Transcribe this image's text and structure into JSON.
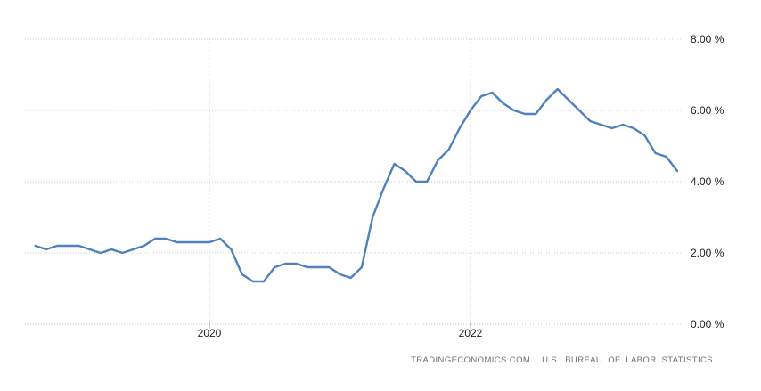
{
  "chart_data": {
    "type": "line",
    "x": [
      "2018-09",
      "2018-10",
      "2018-11",
      "2018-12",
      "2019-01",
      "2019-02",
      "2019-03",
      "2019-04",
      "2019-05",
      "2019-06",
      "2019-07",
      "2019-08",
      "2019-09",
      "2019-10",
      "2019-11",
      "2019-12",
      "2020-01",
      "2020-02",
      "2020-03",
      "2020-04",
      "2020-05",
      "2020-06",
      "2020-07",
      "2020-08",
      "2020-09",
      "2020-10",
      "2020-11",
      "2020-12",
      "2021-01",
      "2021-02",
      "2021-03",
      "2021-04",
      "2021-05",
      "2021-06",
      "2021-07",
      "2021-08",
      "2021-09",
      "2021-10",
      "2021-11",
      "2021-12",
      "2022-01",
      "2022-02",
      "2022-03",
      "2022-04",
      "2022-05",
      "2022-06",
      "2022-07",
      "2022-08",
      "2022-09",
      "2022-10",
      "2022-11",
      "2022-12",
      "2023-01",
      "2023-02",
      "2023-03",
      "2023-04",
      "2023-05",
      "2023-06",
      "2023-07",
      "2023-08"
    ],
    "values": [
      2.2,
      2.1,
      2.2,
      2.2,
      2.2,
      2.1,
      2.0,
      2.1,
      2.0,
      2.1,
      2.2,
      2.4,
      2.4,
      2.3,
      2.3,
      2.3,
      2.3,
      2.4,
      2.1,
      1.4,
      1.2,
      1.2,
      1.6,
      1.7,
      1.7,
      1.6,
      1.6,
      1.6,
      1.4,
      1.3,
      1.6,
      3.0,
      3.8,
      4.5,
      4.3,
      4.0,
      4.0,
      4.6,
      4.9,
      5.5,
      6.0,
      6.4,
      6.5,
      6.2,
      6.0,
      5.9,
      5.9,
      6.3,
      6.6,
      6.3,
      6.0,
      5.7,
      5.6,
      5.5,
      5.6,
      5.5,
      5.3,
      4.8,
      4.7,
      4.3
    ],
    "x_tick_labels": [
      "2020",
      "2022"
    ],
    "x_tick_month_indices": [
      16,
      40
    ],
    "y_ticks": [
      8,
      6,
      4,
      2,
      0
    ],
    "y_tick_labels": [
      "8.00 %",
      "6.00 %",
      "4.00 %",
      "2.00 %",
      "0.00 %"
    ],
    "ylim": [
      0,
      8
    ],
    "grid": "dotted",
    "legend": "none",
    "line_color": "#4f81bd",
    "grid_color": "#c9c9c9",
    "tick_color": "#999999"
  },
  "footer": {
    "source": "TRADINGECONOMICS.COM",
    "separator": "|",
    "agency": "U.S. BUREAU OF LABOR STATISTICS"
  }
}
